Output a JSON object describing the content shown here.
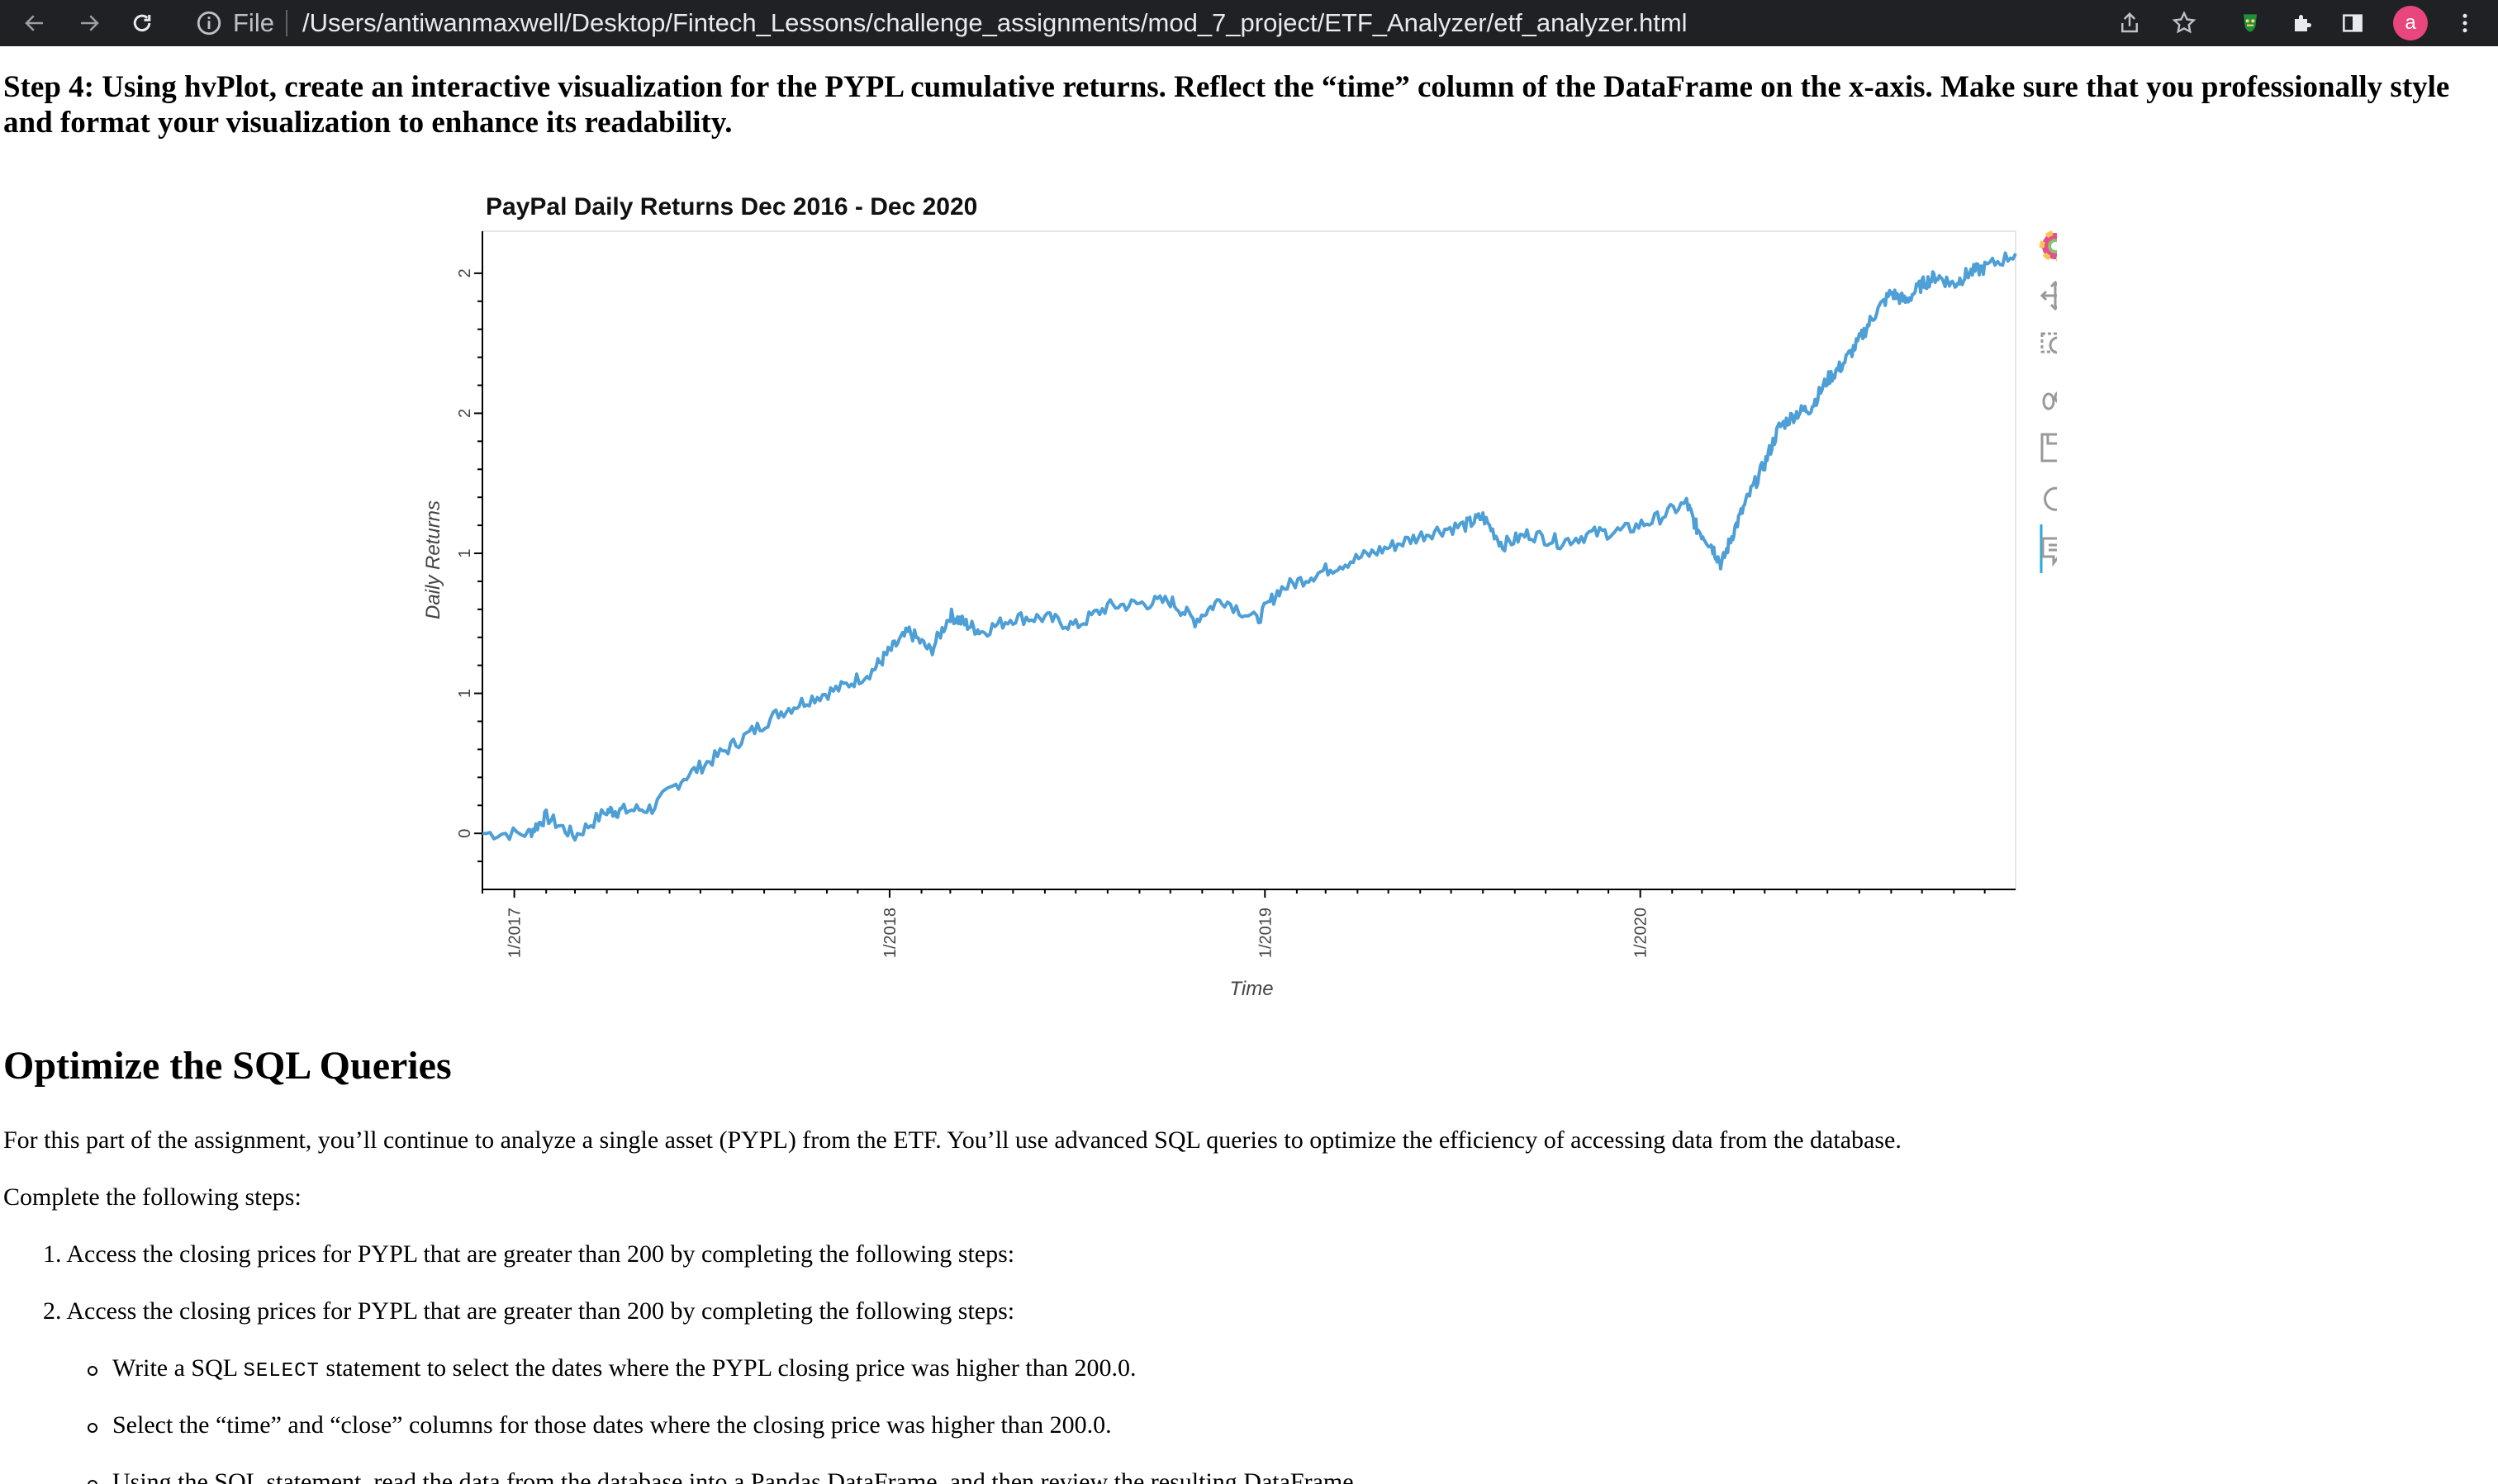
{
  "browser": {
    "file_label": "File",
    "url": "/Users/antiwanmaxwell/Desktop/Fintech_Lessons/challenge_assignments/mod_7_project/ETF_Analyzer/etf_analyzer.html",
    "avatar_letter": "a",
    "icons": [
      "back-arrow-icon",
      "forward-arrow-icon",
      "reload-icon",
      "info-icon",
      "share-icon",
      "star-icon",
      "extension-icon",
      "puzzle-icon",
      "sidebar-icon",
      "menu-dots-icon"
    ]
  },
  "page": {
    "step_heading": "Step 4: Using hvPlot, create an interactive visualization for the PYPL cumulative returns. Reflect the “time” column of the DataFrame on the x-axis. Make sure that you professionally style and format your visualization to enhance its readability.",
    "section_title": "Optimize the SQL Queries",
    "intro": "For this part of the assignment, you’ll continue to analyze a single asset (PYPL) from the ETF. You’ll use advanced SQL queries to optimize the efficiency of accessing data from the database.",
    "complete_steps": "Complete the following steps:",
    "ordered_items": [
      "1. Access the closing prices for PYPL that are greater than 200 by completing the following steps:",
      "2. Access the closing prices for PYPL that are greater than 200 by completing the following steps:"
    ],
    "bullet_1_before": "Write a SQL ",
    "bullet_1_code": "SELECT",
    "bullet_1_after": " statement to select the dates where the PYPL closing price was higher than 200.0.",
    "bullet_2": "Select the “time” and “close” columns for those dates where the closing price was higher than 200.0.",
    "bullet_3": "Using the SQL statement, read the data from the database into a Pandas DataFrame, and then review the resulting DataFrame."
  },
  "chart_data": {
    "type": "line",
    "title": "PayPal Daily Returns Dec 2016 - Dec 2020",
    "xlabel": "Time",
    "ylabel": "Daily Returns",
    "x_tick_labels": [
      "1/2017",
      "1/2018",
      "1/2019",
      "1/2020"
    ],
    "y_tick_labels": [
      "0",
      "1",
      "1",
      "2",
      "2"
    ],
    "xlim": [
      "2016-12-01",
      "2020-12-31"
    ],
    "ylim": [
      -0.2,
      2.15
    ],
    "grid": false,
    "line_color": "#4d9fd6",
    "toolbar_icons": [
      "bokeh-logo-icon",
      "pan-icon",
      "box-zoom-icon",
      "wheel-zoom-icon",
      "save-icon",
      "reset-icon",
      "hover-icon"
    ],
    "series": [
      {
        "x": [
          "2016-12-01",
          "2017-01-15",
          "2017-02-01",
          "2017-03-01",
          "2017-04-01",
          "2017-04-15",
          "2017-05-15",
          "2017-06-15",
          "2017-07-15",
          "2017-08-15",
          "2017-09-15",
          "2017-10-15",
          "2017-11-15",
          "2017-12-15",
          "2018-01-01",
          "2018-01-20",
          "2018-02-10",
          "2018-03-01",
          "2018-03-15",
          "2018-04-01",
          "2018-05-01",
          "2018-06-01",
          "2018-07-01",
          "2018-08-01",
          "2018-09-01",
          "2018-10-01",
          "2018-10-25",
          "2018-11-20",
          "2018-12-24",
          "2019-01-15",
          "2019-02-15",
          "2019-03-15",
          "2019-04-15",
          "2019-05-15",
          "2019-06-15",
          "2019-07-15",
          "2019-08-01",
          "2019-08-20",
          "2019-09-15",
          "2019-10-15",
          "2019-11-15",
          "2019-12-15",
          "2020-01-15",
          "2020-02-15",
          "2020-02-25",
          "2020-03-10",
          "2020-03-20",
          "2020-04-01",
          "2020-04-15",
          "2020-05-01",
          "2020-05-15",
          "2020-06-01",
          "2020-06-15",
          "2020-07-01",
          "2020-07-15",
          "2020-08-01",
          "2020-08-15",
          "2020-09-01",
          "2020-09-15",
          "2020-10-01",
          "2020-10-15",
          "2020-11-01",
          "2020-11-15",
          "2020-12-01",
          "2020-12-31"
        ],
        "y": [
          0.0,
          0.0,
          0.06,
          -0.01,
          0.08,
          0.08,
          0.09,
          0.2,
          0.27,
          0.35,
          0.43,
          0.48,
          0.52,
          0.58,
          0.65,
          0.72,
          0.65,
          0.78,
          0.75,
          0.72,
          0.77,
          0.77,
          0.74,
          0.81,
          0.82,
          0.83,
          0.76,
          0.84,
          0.76,
          0.87,
          0.92,
          0.96,
          1.0,
          1.04,
          1.08,
          1.1,
          1.13,
          1.03,
          1.07,
          1.04,
          1.07,
          1.08,
          1.12,
          1.18,
          1.09,
          1.03,
          0.96,
          1.08,
          1.2,
          1.32,
          1.45,
          1.5,
          1.52,
          1.62,
          1.67,
          1.76,
          1.85,
          1.93,
          1.9,
          1.96,
          1.99,
          1.96,
          2.0,
          2.02,
          2.07
        ]
      }
    ]
  }
}
